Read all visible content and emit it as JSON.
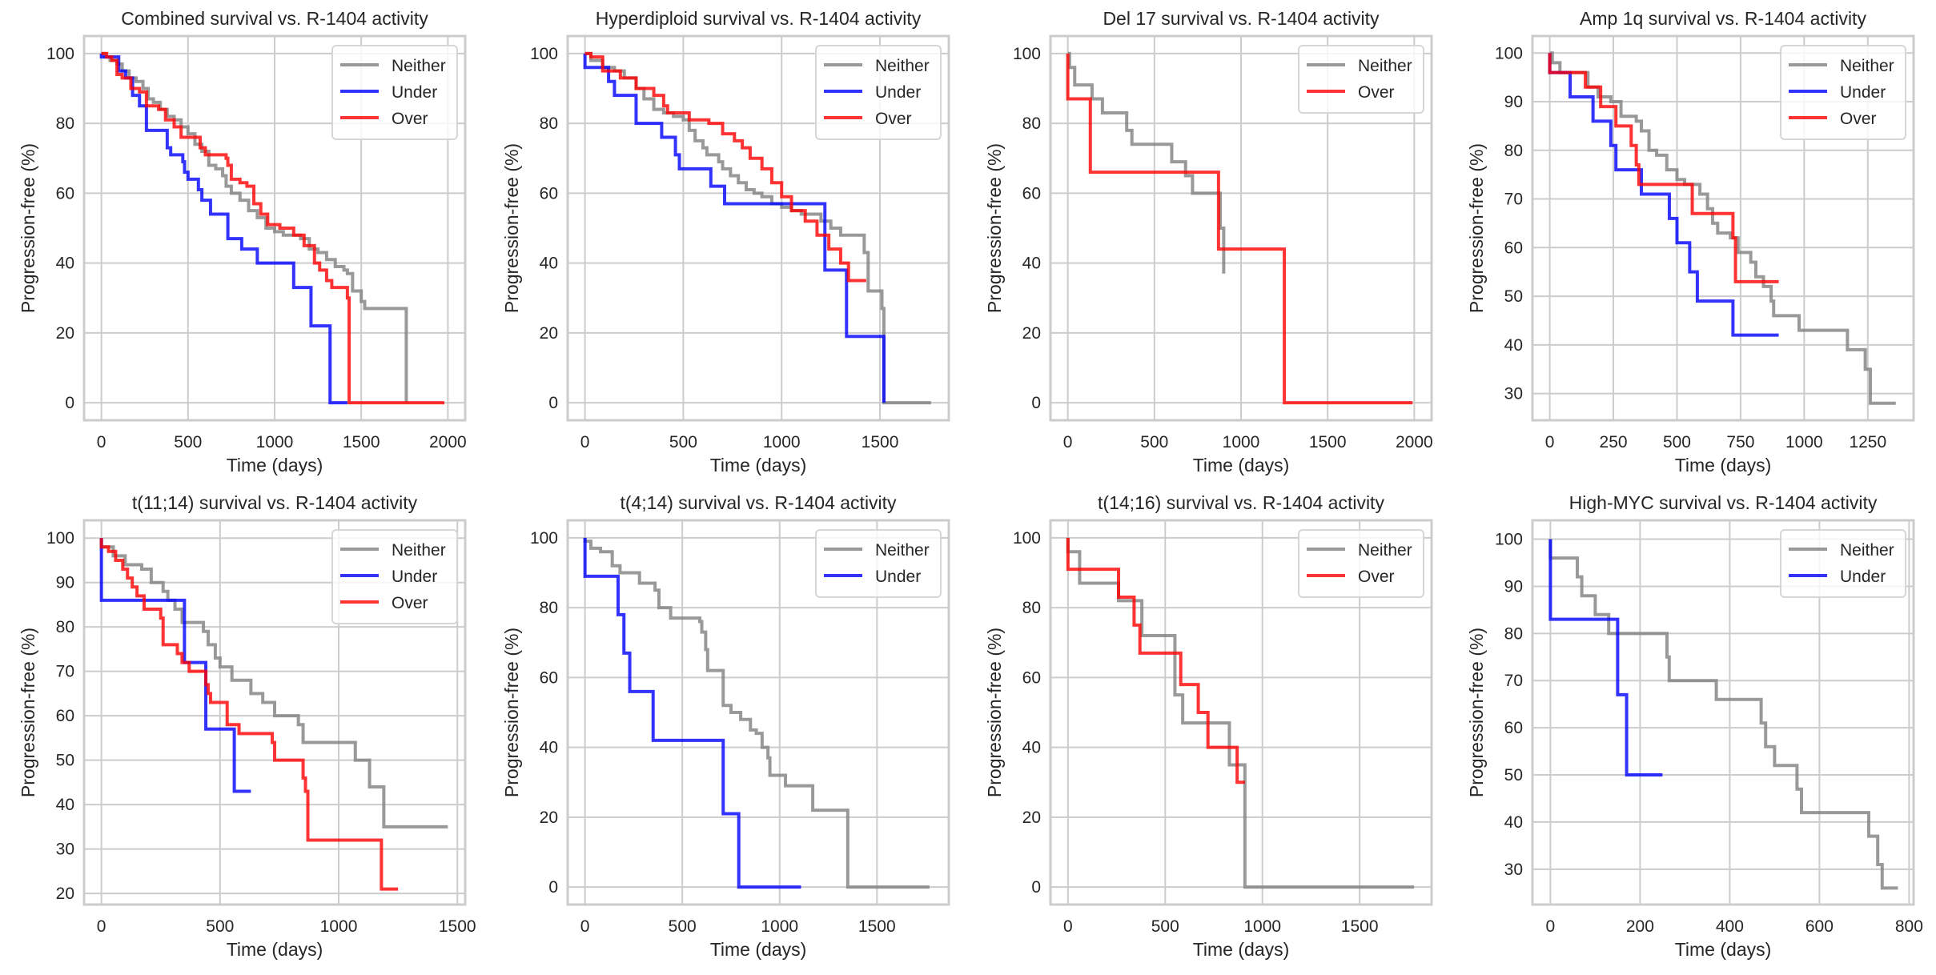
{
  "figure": {
    "series_colors": {
      "Neither": "#808080",
      "Under": "#0000ff",
      "Over": "#ff0000"
    }
  },
  "chart_data": [
    {
      "type": "line",
      "title": "Combined survival vs. R-1404 activity",
      "xlabel": "Time (days)",
      "ylabel": "Progression-free (%)",
      "xlim": [
        -100,
        2100
      ],
      "ylim": [
        -5,
        105
      ],
      "xticks": [
        0,
        500,
        1000,
        1500,
        2000
      ],
      "yticks": [
        0,
        20,
        40,
        60,
        80,
        100
      ],
      "grid": true,
      "legend": "top-right",
      "series": [
        {
          "name": "Neither",
          "x": [
            0,
            20,
            50,
            90,
            120,
            160,
            200,
            240,
            270,
            300,
            340,
            380,
            420,
            460,
            500,
            540,
            580,
            620,
            660,
            700,
            720,
            750,
            800,
            850,
            900,
            950,
            1000,
            1050,
            1100,
            1150,
            1200,
            1250,
            1300,
            1350,
            1400,
            1420,
            1450,
            1500,
            1520,
            1760,
            1760
          ],
          "y": [
            100,
            99,
            98,
            97,
            95,
            93,
            92,
            90,
            87,
            86,
            84,
            82,
            81,
            79,
            77,
            74,
            72,
            68,
            67,
            65,
            62,
            60,
            58,
            55,
            53,
            50,
            49,
            48,
            48,
            47,
            44,
            43,
            41,
            39,
            38,
            37,
            32,
            29,
            27,
            13,
            0
          ]
        },
        {
          "name": "Under",
          "x": [
            0,
            80,
            100,
            140,
            180,
            220,
            260,
            360,
            380,
            400,
            470,
            480,
            500,
            560,
            580,
            630,
            720,
            730,
            810,
            900,
            1110,
            1210,
            1320,
            1420
          ],
          "y": [
            99,
            99,
            95,
            93,
            88,
            85,
            78,
            78,
            73,
            71,
            69,
            66,
            64,
            61,
            58,
            54,
            54,
            47,
            44,
            40,
            33,
            22,
            0,
            0
          ]
        },
        {
          "name": "Over",
          "x": [
            0,
            30,
            60,
            90,
            120,
            170,
            220,
            260,
            330,
            370,
            420,
            460,
            530,
            570,
            600,
            720,
            730,
            750,
            800,
            840,
            880,
            920,
            960,
            1030,
            1110,
            1170,
            1230,
            1260,
            1300,
            1330,
            1420,
            1430,
            1980
          ],
          "y": [
            100,
            99,
            98,
            94,
            93,
            90,
            89,
            85,
            84,
            81,
            79,
            76,
            76,
            73,
            71,
            70,
            68,
            64,
            63,
            62,
            57,
            54,
            51,
            50,
            48,
            45,
            40,
            38,
            35,
            33,
            30,
            0,
            0
          ]
        }
      ]
    },
    {
      "type": "line",
      "title": "Hyperdiploid survival vs. R-1404 activity",
      "xlabel": "Time (days)",
      "ylabel": "Progression-free (%)",
      "xlim": [
        -88,
        1850
      ],
      "ylim": [
        -5,
        105
      ],
      "xticks": [
        0,
        500,
        1000,
        1500
      ],
      "yticks": [
        0,
        20,
        40,
        60,
        80,
        100
      ],
      "grid": true,
      "legend": "top-right",
      "series": [
        {
          "name": "Neither",
          "x": [
            0,
            30,
            90,
            150,
            200,
            260,
            300,
            350,
            400,
            450,
            500,
            530,
            560,
            600,
            620,
            680,
            700,
            740,
            780,
            820,
            860,
            900,
            950,
            1000,
            1050,
            1100,
            1150,
            1200,
            1250,
            1300,
            1420,
            1440,
            1510,
            1520,
            1760
          ],
          "y": [
            100,
            98,
            96,
            95,
            93,
            90,
            87,
            84,
            83,
            82,
            81,
            78,
            75,
            73,
            71,
            69,
            67,
            65,
            63,
            61,
            60,
            59,
            57,
            56,
            55,
            54,
            54,
            52,
            50,
            48,
            43,
            32,
            27,
            0,
            0
          ]
        },
        {
          "name": "Under",
          "x": [
            0,
            90,
            120,
            150,
            260,
            370,
            390,
            460,
            480,
            640,
            710,
            1220,
            1330,
            1520
          ],
          "y": [
            96,
            96,
            92,
            88,
            80,
            80,
            76,
            71,
            67,
            62,
            57,
            38,
            19,
            0
          ]
        },
        {
          "name": "Over",
          "x": [
            0,
            30,
            90,
            180,
            260,
            300,
            350,
            400,
            420,
            450,
            530,
            630,
            700,
            760,
            800,
            840,
            900,
            950,
            1000,
            1050,
            1120,
            1180,
            1240,
            1300,
            1340,
            1430
          ],
          "y": [
            100,
            99,
            95,
            93,
            90,
            90,
            88,
            85,
            83,
            83,
            81,
            80,
            77,
            75,
            73,
            70,
            67,
            63,
            59,
            55,
            52,
            48,
            44,
            40,
            35,
            35
          ]
        }
      ]
    },
    {
      "type": "line",
      "title": "Del 17 survival vs. R-1404 activity",
      "xlabel": "Time (days)",
      "ylabel": "Progression-free (%)",
      "xlim": [
        -100,
        2100
      ],
      "ylim": [
        -5,
        105
      ],
      "xticks": [
        0,
        500,
        1000,
        1500,
        2000
      ],
      "yticks": [
        0,
        20,
        40,
        60,
        80,
        100
      ],
      "grid": true,
      "legend": "top-right",
      "series": [
        {
          "name": "Neither",
          "x": [
            0,
            10,
            40,
            140,
            200,
            340,
            370,
            600,
            680,
            720,
            880,
            900
          ],
          "y": [
            100,
            96,
            91,
            87,
            83,
            78,
            74,
            69,
            65,
            60,
            50,
            37
          ]
        },
        {
          "name": "Over",
          "x": [
            0,
            130,
            870,
            1250,
            1990
          ],
          "y": [
            87,
            66,
            44,
            0,
            0
          ]
        }
      ]
    },
    {
      "type": "line",
      "title": "Amp 1q survival vs. R-1404 activity",
      "xlabel": "Time (days)",
      "ylabel": "Progression-free (%)",
      "xlim": [
        -68,
        1430
      ],
      "ylim": [
        24.5,
        103.5
      ],
      "xticks": [
        0,
        250,
        500,
        750,
        1000,
        1250
      ],
      "yticks": [
        30,
        40,
        50,
        60,
        70,
        80,
        90,
        100
      ],
      "grid": true,
      "legend": "top-right",
      "series": [
        {
          "name": "Neither",
          "x": [
            0,
            10,
            40,
            80,
            150,
            190,
            240,
            280,
            340,
            360,
            390,
            420,
            460,
            500,
            530,
            590,
            620,
            640,
            660,
            710,
            740,
            790,
            810,
            840,
            870,
            880,
            980,
            1170,
            1240,
            1260,
            1360
          ],
          "y": [
            100,
            98,
            96,
            96,
            93,
            91,
            90,
            87,
            86,
            84,
            80,
            79,
            76,
            74,
            73,
            71,
            68,
            65,
            63,
            62,
            59,
            57,
            54,
            52,
            49,
            46,
            43,
            39,
            35,
            28,
            28
          ]
        },
        {
          "name": "Under",
          "x": [
            0,
            80,
            170,
            240,
            260,
            360,
            470,
            500,
            550,
            580,
            720,
            900
          ],
          "y": [
            96,
            91,
            86,
            81,
            76,
            71,
            66,
            61,
            55,
            49,
            42,
            42
          ]
        },
        {
          "name": "Over",
          "x": [
            0,
            140,
            200,
            260,
            320,
            340,
            350,
            560,
            720,
            730,
            900
          ],
          "y": [
            96,
            93,
            89,
            85,
            81,
            77,
            73,
            67,
            62,
            53,
            53
          ]
        }
      ]
    },
    {
      "type": "line",
      "title": "t(11;14) survival vs. R-1404 activity",
      "xlabel": "Time (days)",
      "ylabel": "Progression-free (%)",
      "xlim": [
        -73,
        1533
      ],
      "ylim": [
        17.5,
        104
      ],
      "xticks": [
        0,
        500,
        1000,
        1500
      ],
      "yticks": [
        20,
        30,
        40,
        50,
        60,
        70,
        80,
        90,
        100
      ],
      "grid": true,
      "legend": "top-right",
      "series": [
        {
          "name": "Neither",
          "x": [
            0,
            50,
            100,
            170,
            210,
            260,
            280,
            310,
            340,
            430,
            450,
            480,
            500,
            550,
            630,
            680,
            730,
            830,
            850,
            1070,
            1130,
            1190,
            1460
          ],
          "y": [
            98,
            96,
            94,
            93,
            90,
            88,
            86,
            84,
            81,
            79,
            76,
            73,
            71,
            68,
            65,
            63,
            60,
            58,
            54,
            50,
            44,
            35,
            35
          ]
        },
        {
          "name": "Under",
          "x": [
            0,
            350,
            440,
            560,
            630
          ],
          "y": [
            86,
            72,
            57,
            43,
            43
          ]
        },
        {
          "name": "Over",
          "x": [
            0,
            30,
            60,
            90,
            110,
            130,
            150,
            180,
            250,
            260,
            320,
            340,
            370,
            440,
            450,
            460,
            530,
            540,
            580,
            720,
            730,
            850,
            860,
            870,
            1180,
            1250
          ],
          "y": [
            98,
            97,
            95,
            93,
            91,
            89,
            87,
            84,
            82,
            76,
            74,
            72,
            70,
            67,
            65,
            63,
            58,
            58,
            56,
            54,
            50,
            46,
            43,
            32,
            21,
            21
          ]
        }
      ]
    },
    {
      "type": "line",
      "title": "t(4;14) survival vs. R-1404 activity",
      "xlabel": "Time (days)",
      "ylabel": "Progression-free (%)",
      "xlim": [
        -89,
        1869
      ],
      "ylim": [
        -5,
        105
      ],
      "xticks": [
        0,
        500,
        1000,
        1500
      ],
      "yticks": [
        0,
        20,
        40,
        60,
        80,
        100
      ],
      "grid": true,
      "legend": "top-right",
      "series": [
        {
          "name": "Neither",
          "x": [
            0,
            30,
            80,
            140,
            180,
            280,
            360,
            380,
            440,
            590,
            600,
            620,
            630,
            700,
            710,
            750,
            800,
            850,
            880,
            910,
            940,
            950,
            1030,
            1170,
            1350,
            1770
          ],
          "y": [
            99,
            97,
            96,
            92,
            90,
            87,
            85,
            80,
            77,
            76,
            73,
            68,
            62,
            62,
            52,
            50,
            48,
            45,
            44,
            40,
            37,
            32,
            29,
            22,
            0,
            0
          ]
        },
        {
          "name": "Under",
          "x": [
            0,
            170,
            200,
            230,
            350,
            710,
            790,
            1110
          ],
          "y": [
            89,
            78,
            67,
            56,
            42,
            21,
            0,
            0
          ]
        }
      ]
    },
    {
      "type": "line",
      "title": "t(14;16) survival vs. R-1404 activity",
      "xlabel": "Time (days)",
      "ylabel": "Progression-free (%)",
      "xlim": [
        -90,
        1870
      ],
      "ylim": [
        -5,
        105
      ],
      "xticks": [
        0,
        500,
        1000,
        1500
      ],
      "yticks": [
        0,
        20,
        40,
        60,
        80,
        100
      ],
      "grid": true,
      "legend": "top-right",
      "series": [
        {
          "name": "Neither",
          "x": [
            0,
            60,
            260,
            380,
            550,
            590,
            830,
            910,
            1780
          ],
          "y": [
            96,
            87,
            82,
            72,
            55,
            47,
            35,
            0,
            0
          ]
        },
        {
          "name": "Over",
          "x": [
            0,
            260,
            340,
            370,
            580,
            670,
            720,
            870,
            910
          ],
          "y": [
            91,
            83,
            75,
            67,
            58,
            50,
            40,
            30,
            30
          ]
        }
      ]
    },
    {
      "type": "line",
      "title": "High-MYC survival vs. R-1404 activity",
      "xlabel": "Time (days)",
      "ylabel": "Progression-free (%)",
      "xlim": [
        -40,
        810
      ],
      "ylim": [
        22.5,
        104
      ],
      "xticks": [
        0,
        200,
        400,
        600,
        800
      ],
      "yticks": [
        30,
        40,
        50,
        60,
        70,
        80,
        90,
        100
      ],
      "grid": true,
      "legend": "top-right",
      "series": [
        {
          "name": "Neither",
          "x": [
            0,
            60,
            70,
            100,
            130,
            260,
            265,
            370,
            470,
            480,
            500,
            550,
            560,
            710,
            730,
            740,
            775
          ],
          "y": [
            96,
            92,
            88,
            84,
            80,
            75,
            70,
            66,
            61,
            56,
            52,
            47,
            42,
            37,
            31,
            26,
            26
          ]
        },
        {
          "name": "Under",
          "x": [
            0,
            150,
            170,
            250
          ],
          "y": [
            83,
            67,
            50,
            50
          ]
        }
      ]
    }
  ]
}
